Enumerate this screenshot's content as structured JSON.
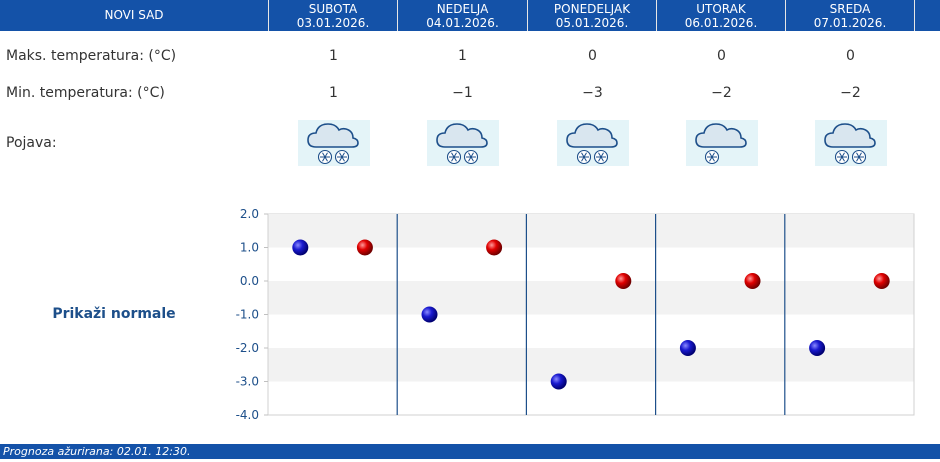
{
  "header": {
    "city": "NOVI SAD",
    "days": [
      {
        "name": "SUBOTA",
        "date": "03.01.2026."
      },
      {
        "name": "NEDELJA",
        "date": "04.01.2026."
      },
      {
        "name": "PONEDELJAK",
        "date": "05.01.2026."
      },
      {
        "name": "UTORAK",
        "date": "06.01.2026."
      },
      {
        "name": "SREDA",
        "date": "07.01.2026."
      }
    ]
  },
  "rows": {
    "max_label": "Maks. temperatura: (°C)",
    "min_label": "Min. temperatura: (°C)",
    "phenomenon_label": "Pojava:",
    "max_values": [
      "1",
      "1",
      "0",
      "0",
      "0"
    ],
    "min_values": [
      "1",
      "−1",
      "−3",
      "−2",
      "−2"
    ],
    "icons": [
      "snow-cloud-icon",
      "snow-cloud-icon",
      "snow-cloud-icon",
      "sleet-cloud-icon",
      "snow-cloud-icon"
    ]
  },
  "normals_link": "Prikaži normale",
  "footer": "Prognoza ažurirana:  02.01. 12:30.",
  "colors": {
    "header_bg": "#1452a8",
    "min_marker": "#1010b8",
    "max_marker": "#d00000",
    "separator": "#1d4f8a",
    "band": "#f2f2f2"
  },
  "chart_data": {
    "type": "scatter",
    "categories": [
      "03.01.2026.",
      "04.01.2026.",
      "05.01.2026.",
      "06.01.2026.",
      "07.01.2026."
    ],
    "series": [
      {
        "values": [
          1,
          -1,
          -3,
          -2,
          -2
        ]
      },
      {
        "values": [
          1,
          1,
          0,
          0,
          0
        ]
      }
    ],
    "yticks": [
      "2.0",
      "1.0",
      "0.0",
      "-1.0",
      "-2.0",
      "-3.0",
      "-4.0"
    ],
    "ylim": [
      -4,
      2
    ],
    "grid": "alternating horizontal bands",
    "legend": "none"
  }
}
